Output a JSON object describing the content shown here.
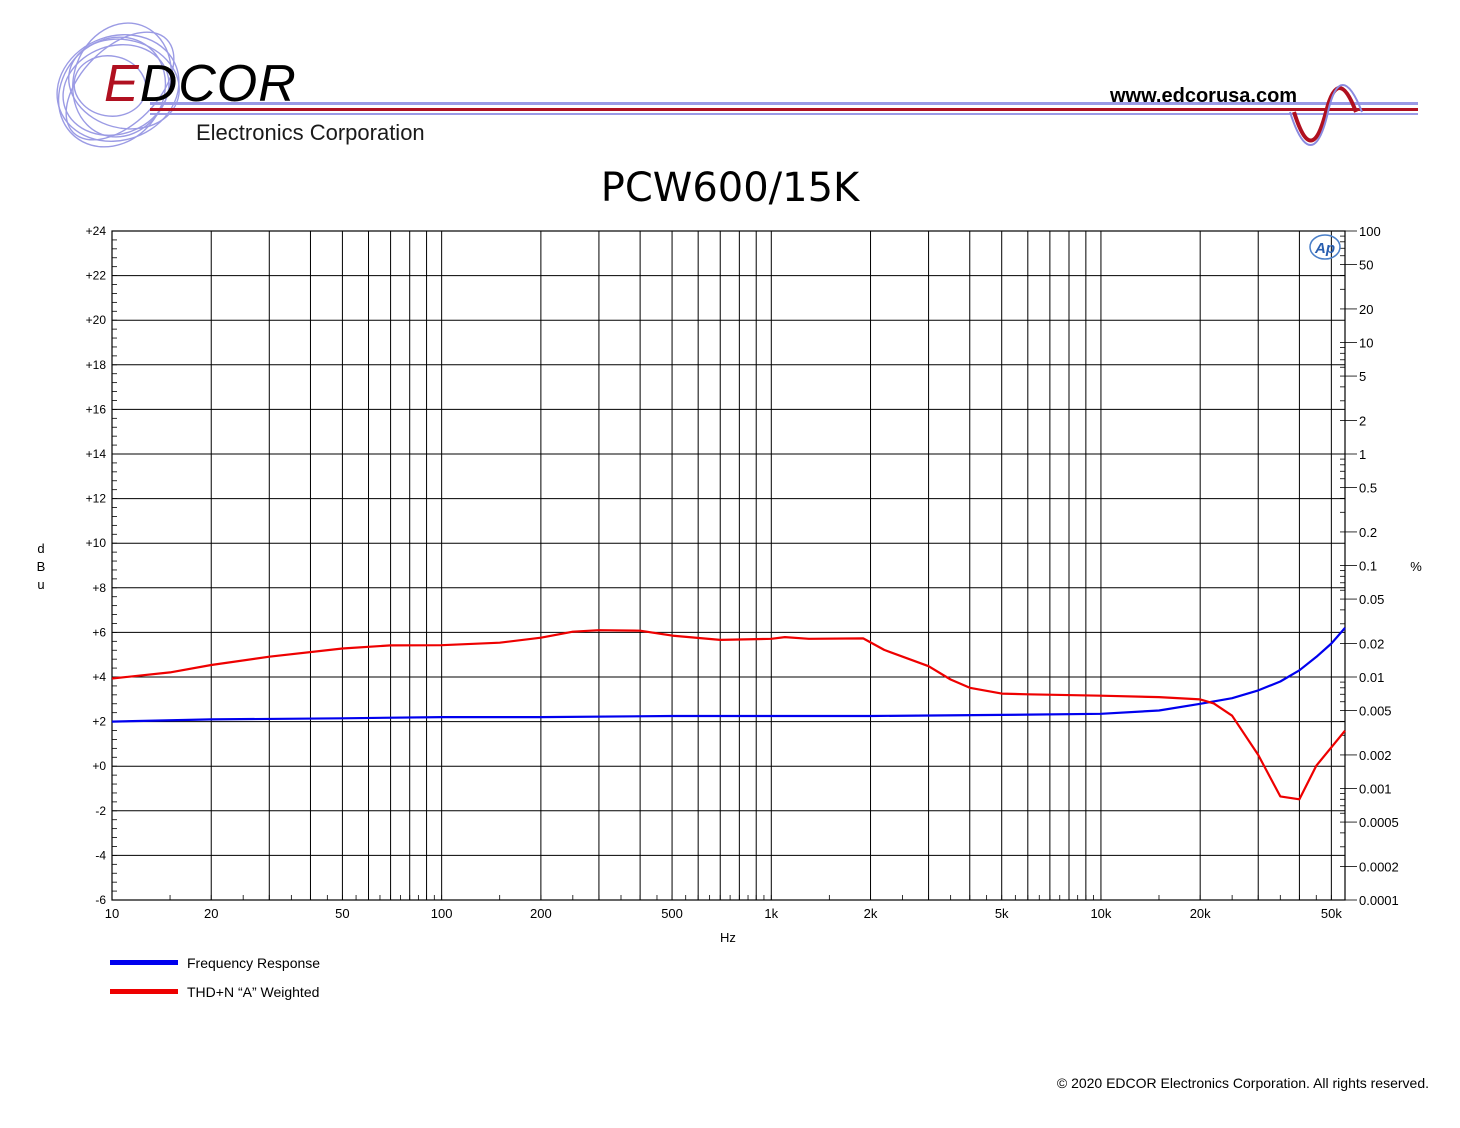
{
  "header": {
    "brand_initial": "E",
    "brand_rest": "DCOR",
    "brand_tagline": "Electronics Corporation",
    "website": "www.edcorusa.com",
    "stripe_color": "#8a8ae0",
    "red_stripe_color": "#b01020"
  },
  "footer": {
    "copyright": "© 2020 EDCOR Electronics Corporation. All rights reserved."
  },
  "chart_data": {
    "type": "line",
    "title": "PCW600/15K",
    "xlabel": "Hz",
    "ylabel_left": "dBu",
    "ylabel_right": "%",
    "x_scale": "log",
    "xlim": [
      10,
      55000
    ],
    "ylim_left": [
      -6,
      24
    ],
    "ylim_right": [
      0.0001,
      100
    ],
    "y_right_scale": "log",
    "grid": true,
    "logo_mark": "Ap",
    "x_ticks": [
      {
        "v": 10,
        "label": "10"
      },
      {
        "v": 20,
        "label": "20"
      },
      {
        "v": 50,
        "label": "50"
      },
      {
        "v": 100,
        "label": "100"
      },
      {
        "v": 200,
        "label": "200"
      },
      {
        "v": 500,
        "label": "500"
      },
      {
        "v": 1000,
        "label": "1k"
      },
      {
        "v": 2000,
        "label": "2k"
      },
      {
        "v": 5000,
        "label": "5k"
      },
      {
        "v": 10000,
        "label": "10k"
      },
      {
        "v": 20000,
        "label": "20k"
      },
      {
        "v": 50000,
        "label": "50k"
      }
    ],
    "y_left_ticks": [
      {
        "v": 24,
        "label": "+24"
      },
      {
        "v": 22,
        "label": "+22"
      },
      {
        "v": 20,
        "label": "+20"
      },
      {
        "v": 18,
        "label": "+18"
      },
      {
        "v": 16,
        "label": "+16"
      },
      {
        "v": 14,
        "label": "+14"
      },
      {
        "v": 12,
        "label": "+12"
      },
      {
        "v": 10,
        "label": "+10"
      },
      {
        "v": 8,
        "label": "+8"
      },
      {
        "v": 6,
        "label": "+6"
      },
      {
        "v": 4,
        "label": "+4"
      },
      {
        "v": 2,
        "label": "+2"
      },
      {
        "v": 0,
        "label": "+0"
      },
      {
        "v": -2,
        "label": "-2"
      },
      {
        "v": -4,
        "label": "-4"
      },
      {
        "v": -6,
        "label": "-6"
      }
    ],
    "y_right_ticks": [
      {
        "v": 100,
        "label": "100"
      },
      {
        "v": 50,
        "label": "50"
      },
      {
        "v": 20,
        "label": "20"
      },
      {
        "v": 10,
        "label": "10"
      },
      {
        "v": 5,
        "label": "5"
      },
      {
        "v": 2,
        "label": "2"
      },
      {
        "v": 1,
        "label": "1"
      },
      {
        "v": 0.5,
        "label": "0.5"
      },
      {
        "v": 0.2,
        "label": "0.2"
      },
      {
        "v": 0.1,
        "label": "0.1"
      },
      {
        "v": 0.05,
        "label": "0.05"
      },
      {
        "v": 0.02,
        "label": "0.02"
      },
      {
        "v": 0.01,
        "label": "0.01"
      },
      {
        "v": 0.005,
        "label": "0.005"
      },
      {
        "v": 0.002,
        "label": "0.002"
      },
      {
        "v": 0.001,
        "label": "0.001"
      },
      {
        "v": 0.0005,
        "label": "0.0005"
      },
      {
        "v": 0.0002,
        "label": "0.0002"
      },
      {
        "v": 0.0001,
        "label": "0.0001"
      }
    ],
    "series": [
      {
        "name": "Frequency Response",
        "axis": "left",
        "color": "#0000ee",
        "x": [
          10,
          20,
          50,
          100,
          200,
          500,
          1000,
          2000,
          5000,
          10000,
          15000,
          20000,
          25000,
          30000,
          35000,
          40000,
          45000,
          50000,
          55000
        ],
        "y": [
          2.0,
          2.1,
          2.15,
          2.2,
          2.2,
          2.25,
          2.25,
          2.25,
          2.3,
          2.35,
          2.5,
          2.8,
          3.05,
          3.4,
          3.8,
          4.3,
          4.9,
          5.5,
          6.2
        ]
      },
      {
        "name": "THD+N “A” Weighted",
        "axis": "right",
        "color": "#ee0000",
        "x": [
          10,
          15,
          20,
          30,
          50,
          70,
          100,
          150,
          200,
          250,
          300,
          400,
          500,
          700,
          1000,
          1100,
          1300,
          1900,
          2200,
          3000,
          3500,
          4000,
          5000,
          6000,
          10000,
          15000,
          20000,
          22000,
          25000,
          30000,
          35000,
          40000,
          45000,
          55000
        ],
        "y": [
          0.0097,
          0.011,
          0.0128,
          0.0152,
          0.018,
          0.0192,
          0.0193,
          0.0203,
          0.0225,
          0.0255,
          0.0263,
          0.026,
          0.0235,
          0.0215,
          0.022,
          0.0228,
          0.022,
          0.0222,
          0.0175,
          0.0125,
          0.0095,
          0.008,
          0.0071,
          0.007,
          0.0068,
          0.0066,
          0.0063,
          0.0058,
          0.0045,
          0.002,
          0.00085,
          0.0008,
          0.0016,
          0.0033
        ]
      }
    ]
  }
}
